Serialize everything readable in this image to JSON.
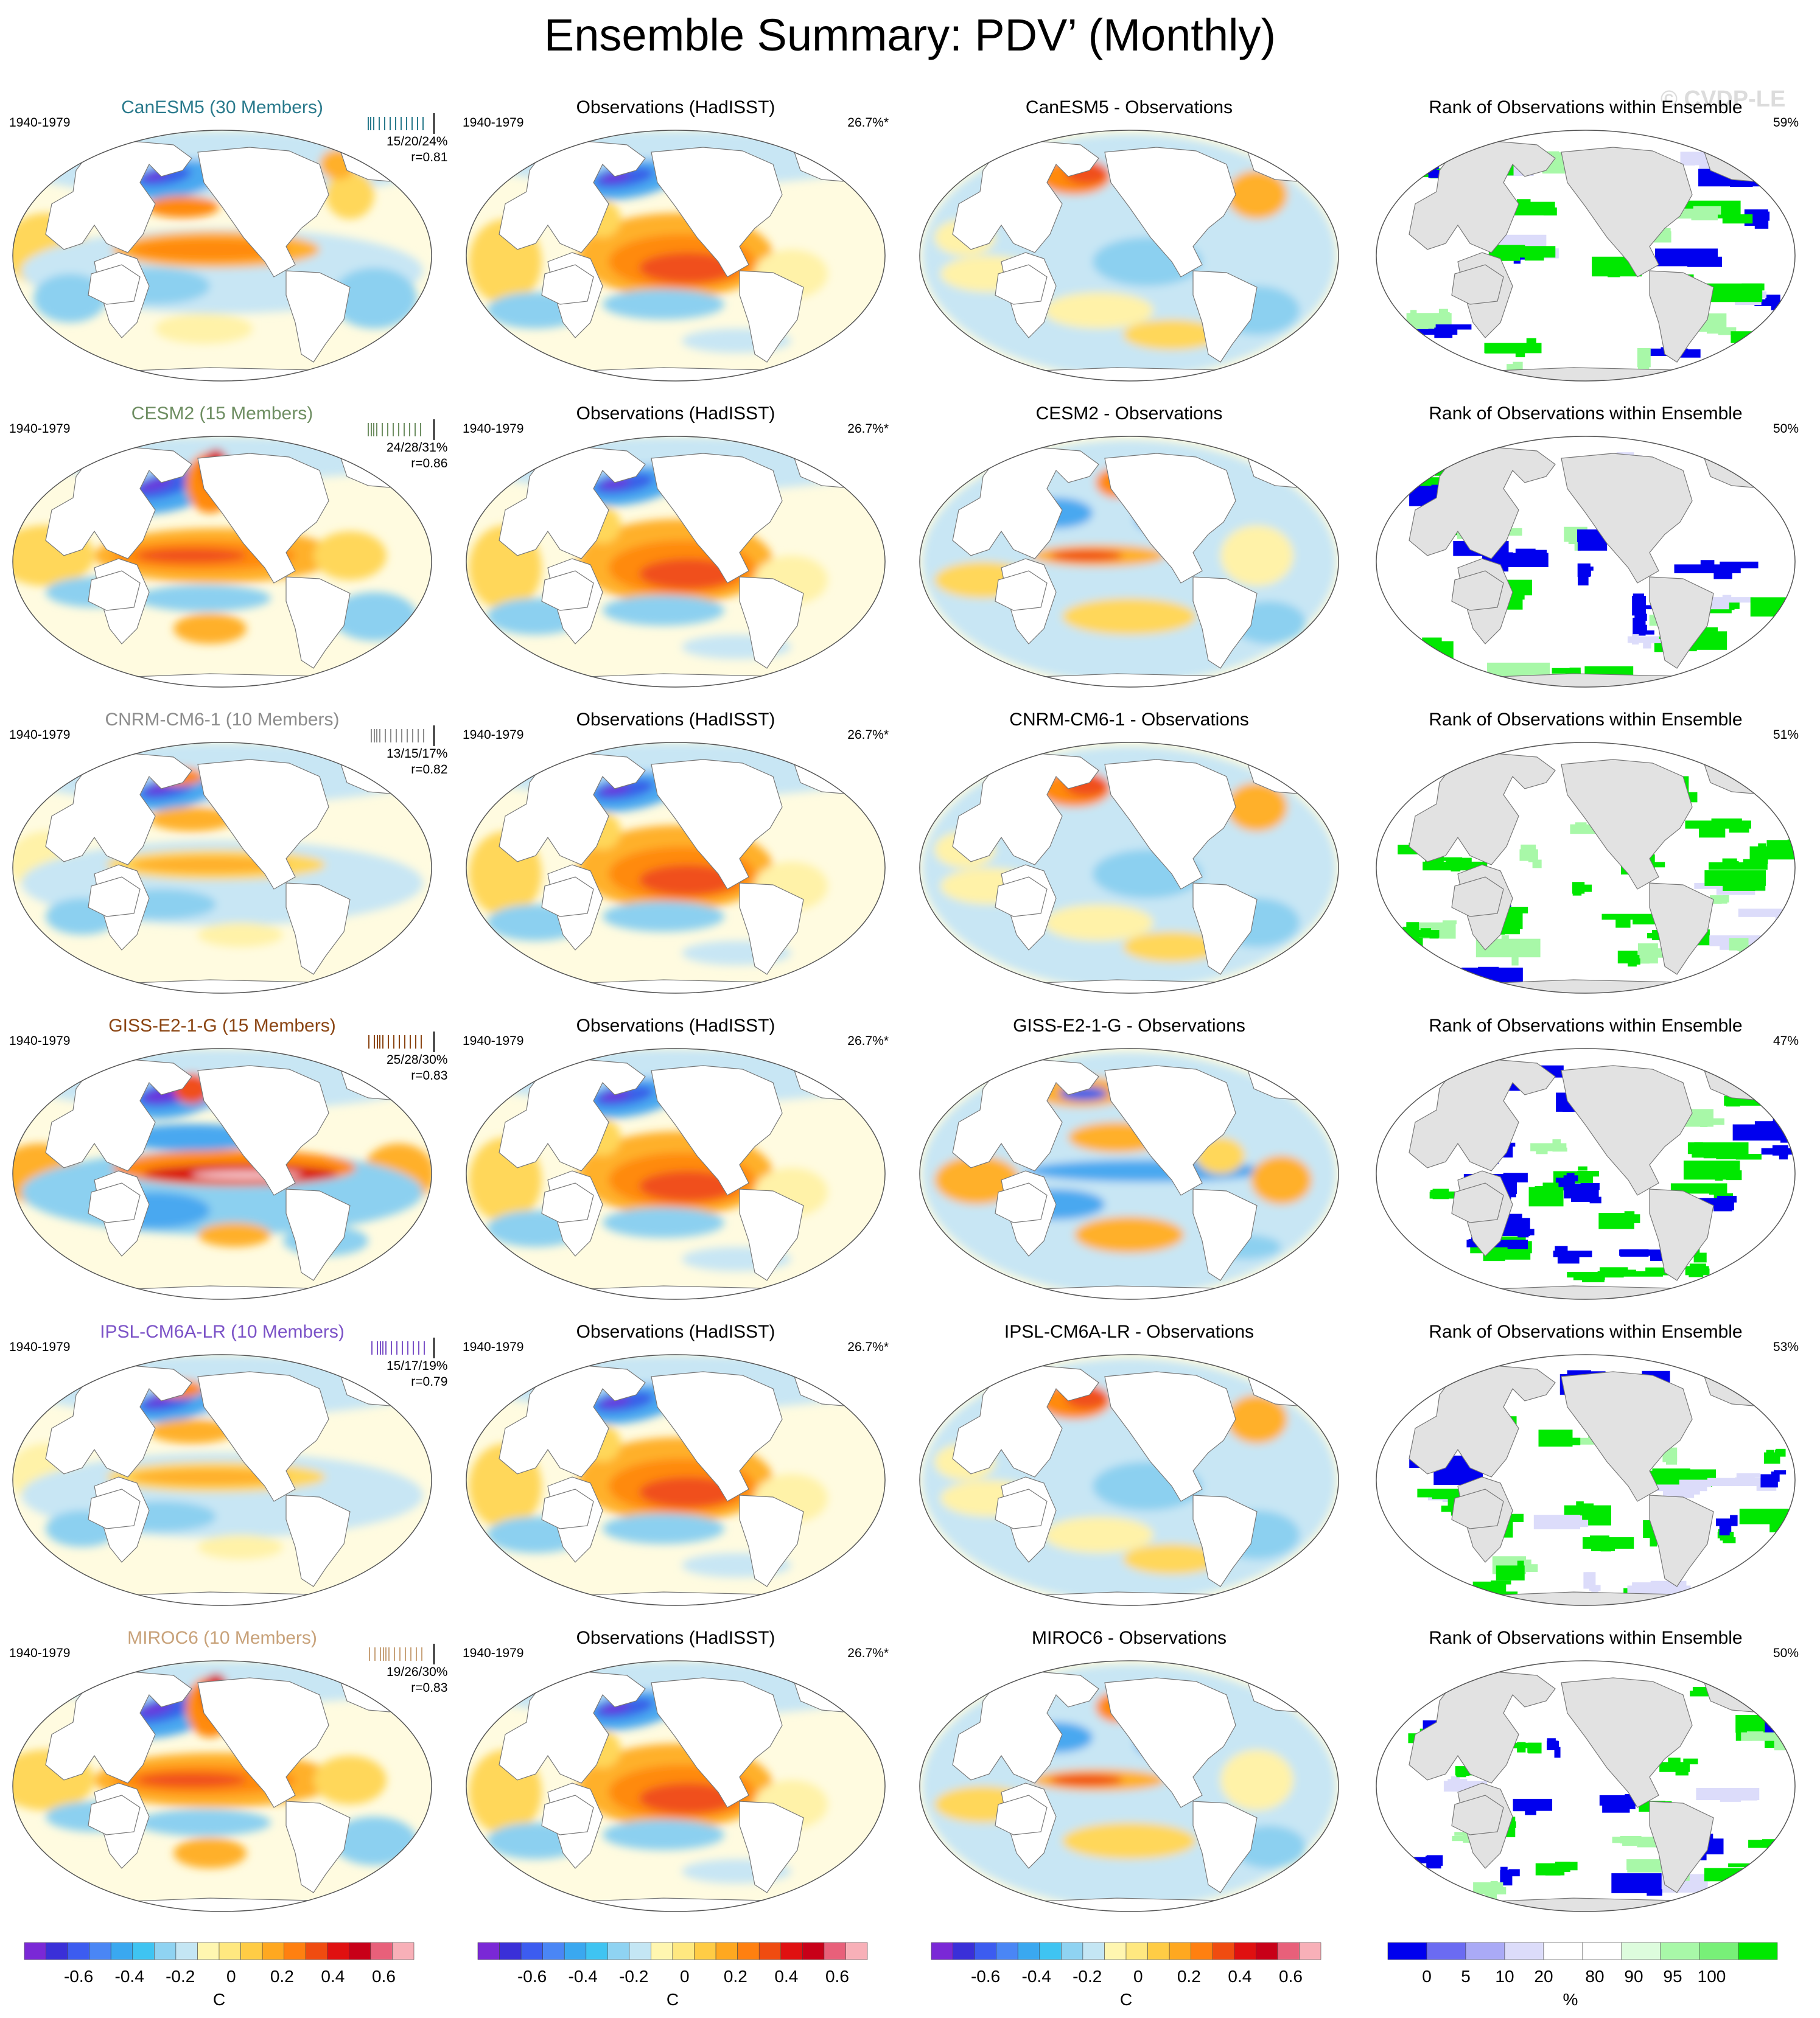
{
  "title": "Ensemble Summary: PDV’ (Monthly)",
  "watermark": "© CVDP-LE",
  "rows": [
    {
      "model": {
        "title": "CanESM5 (30 Members)",
        "color": "#2a7a8c",
        "years": "1940-1979",
        "stats": "15/20/24%",
        "corr": "r=0.81",
        "pattern": "canesm"
      },
      "obs": {
        "title": "Observations (HadISST)",
        "years": "1940-1979",
        "pct": "26.7%*"
      },
      "diff": {
        "title": "CanESM5 - Observations",
        "pattern": "diff_warmnp"
      },
      "rank": {
        "title": "Rank of Observations within Ensemble",
        "pct": "59%"
      }
    },
    {
      "model": {
        "title": "CESM2 (15 Members)",
        "color": "#6e8e62",
        "years": "1940-1979",
        "stats": "24/28/31%",
        "corr": "r=0.86",
        "pattern": "strong"
      },
      "obs": {
        "title": "Observations (HadISST)",
        "years": "1940-1979",
        "pct": "26.7%*"
      },
      "diff": {
        "title": "CESM2 - Observations",
        "pattern": "diff_warmeq"
      },
      "rank": {
        "title": "Rank of Observations within Ensemble",
        "pct": "50%"
      }
    },
    {
      "model": {
        "title": "CNRM-CM6-1 (10 Members)",
        "color": "#8c8c8c",
        "years": "1940-1979",
        "stats": "13/15/17%",
        "corr": "r=0.82",
        "pattern": "weak"
      },
      "obs": {
        "title": "Observations (HadISST)",
        "years": "1940-1979",
        "pct": "26.7%*"
      },
      "diff": {
        "title": "CNRM-CM6-1 - Observations",
        "pattern": "diff_warmnp"
      },
      "rank": {
        "title": "Rank of Observations within Ensemble",
        "pct": "51%"
      }
    },
    {
      "model": {
        "title": "GISS-E2-1-G (15 Members)",
        "color": "#8b4513",
        "years": "1940-1979",
        "stats": "25/28/30%",
        "corr": "r=0.83",
        "pattern": "giss"
      },
      "obs": {
        "title": "Observations (HadISST)",
        "years": "1940-1979",
        "pct": "26.7%*"
      },
      "diff": {
        "title": "GISS-E2-1-G - Observations",
        "pattern": "diff_giss"
      },
      "rank": {
        "title": "Rank of Observations within Ensemble",
        "pct": "47%"
      }
    },
    {
      "model": {
        "title": "IPSL-CM6A-LR (10 Members)",
        "color": "#7b52c7",
        "years": "1940-1979",
        "stats": "15/17/19%",
        "corr": "r=0.79",
        "pattern": "weak"
      },
      "obs": {
        "title": "Observations (HadISST)",
        "years": "1940-1979",
        "pct": "26.7%*"
      },
      "diff": {
        "title": "IPSL-CM6A-LR - Observations",
        "pattern": "diff_warmnp"
      },
      "rank": {
        "title": "Rank of Observations within Ensemble",
        "pct": "53%"
      }
    },
    {
      "model": {
        "title": "MIROC6 (10 Members)",
        "color": "#c8a27a",
        "years": "1940-1979",
        "stats": "19/26/30%",
        "corr": "r=0.83",
        "pattern": "strong"
      },
      "obs": {
        "title": "Observations (HadISST)",
        "years": "1940-1979",
        "pct": "26.7%*"
      },
      "diff": {
        "title": "MIROC6 - Observations",
        "pattern": "diff_warmeq"
      },
      "rank": {
        "title": "Rank of Observations within Ensemble",
        "pct": "50%"
      }
    }
  ],
  "colorbars": [
    {
      "unit": "C",
      "ticks": [
        "-0.6",
        "-0.4",
        "-0.2",
        "0",
        "0.2",
        "0.4",
        "0.6"
      ]
    },
    {
      "unit": "C",
      "ticks": [
        "-0.6",
        "-0.4",
        "-0.2",
        "0",
        "0.2",
        "0.4",
        "0.6"
      ]
    },
    {
      "unit": "C",
      "ticks": [
        "-0.6",
        "-0.4",
        "-0.2",
        "0",
        "0.2",
        "0.4",
        "0.6"
      ]
    },
    {
      "unit": "%",
      "ticks": [
        "0",
        "5",
        "10",
        "20",
        "80",
        "90",
        "95",
        "100"
      ]
    }
  ],
  "palettes": {
    "temperature": [
      "#7a28d6",
      "#3a2fd8",
      "#3c5cf0",
      "#4a86f5",
      "#3aa8f0",
      "#3fc4f2",
      "#8fd3f2",
      "#c4e6f4",
      "#fff6b0",
      "#ffe880",
      "#ffcc45",
      "#ffa820",
      "#ff8010",
      "#f04c10",
      "#e01010",
      "#c80018",
      "#e8607a",
      "#f8b0b8"
    ],
    "rank": [
      "#0000ee",
      "#6b6bf2",
      "#aaaaf6",
      "#dcdcfa",
      "#ffffff",
      "#ffffff",
      "#ddfcdd",
      "#a8f8a8",
      "#78f078",
      "#00e800"
    ]
  }
}
